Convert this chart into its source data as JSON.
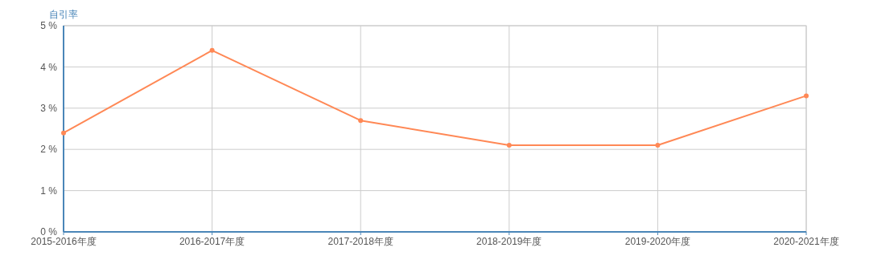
{
  "chart_data": {
    "type": "line",
    "ylabel": "自引率",
    "categories": [
      "2015-2016年度",
      "2016-2017年度",
      "2017-2018年度",
      "2018-2019年度",
      "2019-2020年度",
      "2020-2021年度"
    ],
    "series": [
      {
        "color": "#ff8855",
        "values": [
          2.4,
          4.4,
          2.7,
          2.1,
          2.1,
          3.3
        ]
      }
    ],
    "ylim": [
      0,
      5
    ],
    "yticks": [
      {
        "value": 0,
        "label": "0 %"
      },
      {
        "value": 1,
        "label": "1 %"
      },
      {
        "value": 2,
        "label": "2 %"
      },
      {
        "value": 3,
        "label": "3 %"
      },
      {
        "value": 4,
        "label": "4 %"
      },
      {
        "value": 5,
        "label": "5 %"
      }
    ],
    "grid": true,
    "marker": "circle"
  }
}
